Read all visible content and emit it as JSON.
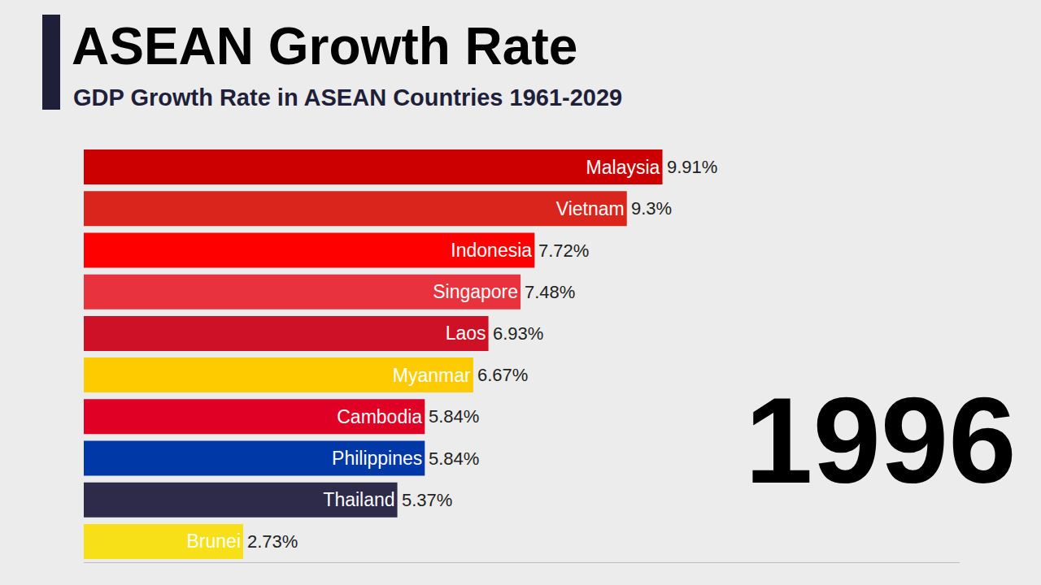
{
  "chart_data": {
    "type": "bar",
    "title": "ASEAN Growth Rate",
    "subtitle": "GDP Growth Rate in ASEAN Countries 1961-2029",
    "year": "1996",
    "orientation": "horizontal",
    "categories": [
      "Malaysia",
      "Vietnam",
      "Indonesia",
      "Singapore",
      "Laos",
      "Myanmar",
      "Cambodia",
      "Philippines",
      "Thailand",
      "Brunei"
    ],
    "values": [
      9.91,
      9.3,
      7.72,
      7.48,
      6.93,
      6.67,
      5.84,
      5.84,
      5.37,
      2.73
    ],
    "value_labels": [
      "9.91%",
      "9.3%",
      "7.72%",
      "7.48%",
      "6.93%",
      "6.67%",
      "5.84%",
      "5.84%",
      "5.37%",
      "2.73%"
    ],
    "colors": [
      "#cc0001",
      "#da251d",
      "#ff0000",
      "#e8323e",
      "#ce1126",
      "#fecb00",
      "#e00025",
      "#0038a8",
      "#2d2a4a",
      "#f7e017"
    ],
    "xlim": [
      0,
      15
    ],
    "data_labels": true,
    "tick_labels": false,
    "grid": false
  }
}
